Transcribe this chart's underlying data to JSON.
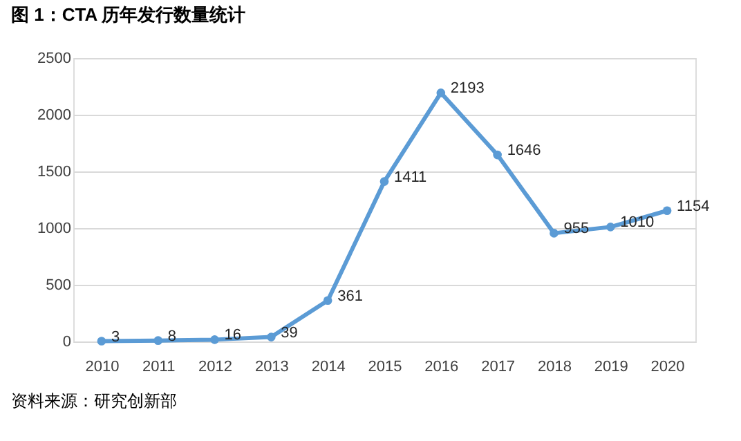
{
  "chart_data": {
    "type": "line",
    "title": "图 1：CTA 历年发行数量统计",
    "categories": [
      "2010",
      "2011",
      "2012",
      "2013",
      "2014",
      "2015",
      "2016",
      "2017",
      "2018",
      "2019",
      "2020"
    ],
    "values": [
      3,
      8,
      16,
      39,
      361,
      1411,
      2193,
      1646,
      955,
      1010,
      1154
    ],
    "color": "#5b9bd5",
    "ylim": [
      0,
      2500
    ],
    "yticks": [
      0,
      500,
      1000,
      1500,
      2000,
      2500
    ],
    "grid": "y",
    "marker": "circle",
    "line_style": "solid",
    "data_labels": true,
    "annotations": [
      "资料来源：研究创新部"
    ]
  }
}
